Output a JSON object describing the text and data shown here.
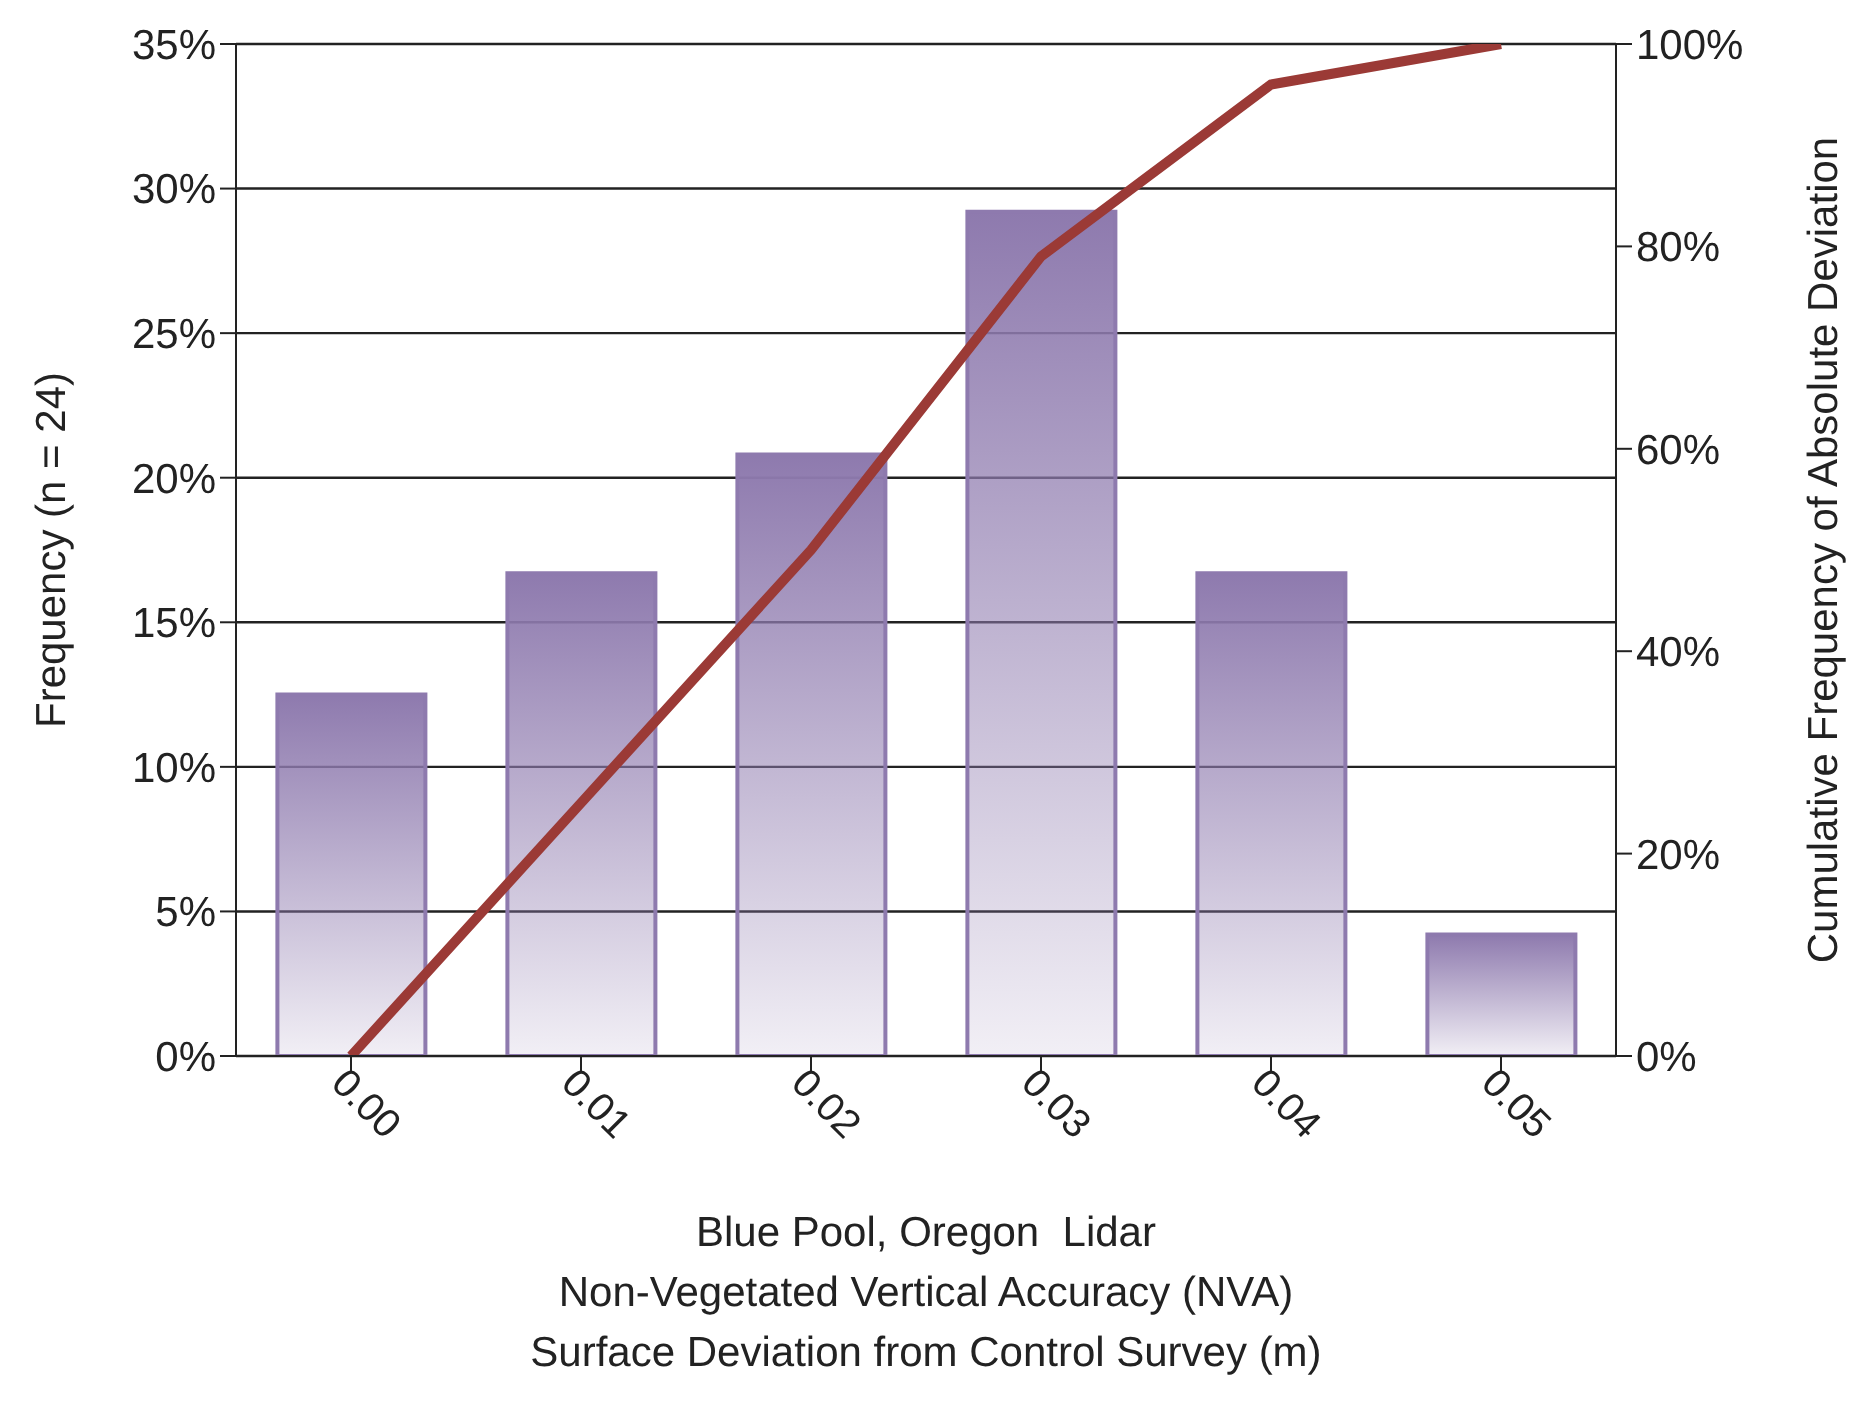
{
  "chart_data": {
    "type": "bar",
    "xlabel": "Blue Pool, Oregon  Lidar\nNon-Vegetated Vertical Accuracy (NVA)\nSurface Deviation from Control Survey (m)",
    "ylabel": "Frequency (n = 24)",
    "y2label": "Cumulative Frequency of Absolute Deviation",
    "categories": [
      "0.00",
      "0.01",
      "0.02",
      "0.03",
      "0.04",
      "0.05"
    ],
    "series": [
      {
        "color": "#8e7aae",
        "values": [
          12.5,
          16.7,
          20.8,
          29.2,
          16.7,
          4.2
        ]
      },
      {
        "type": "line",
        "axis": "y2",
        "color": "#9b3a36",
        "values": [
          0,
          25,
          50,
          79,
          96,
          100
        ]
      }
    ],
    "ylim": [
      0,
      35
    ],
    "yticks": [
      {
        "value": 0,
        "label": "0%"
      },
      {
        "value": 5,
        "label": "5%"
      },
      {
        "value": 10,
        "label": "10%"
      },
      {
        "value": 15,
        "label": "15%"
      },
      {
        "value": 20,
        "label": "20%"
      },
      {
        "value": 25,
        "label": "25%"
      },
      {
        "value": 30,
        "label": "30%"
      },
      {
        "value": 35,
        "label": "35%"
      }
    ],
    "y2lim": [
      0,
      100
    ],
    "y2ticks": [
      {
        "value": 0,
        "label": "0%"
      },
      {
        "value": 20,
        "label": "20%"
      },
      {
        "value": 40,
        "label": "40%"
      },
      {
        "value": 60,
        "label": "60%"
      },
      {
        "value": 80,
        "label": "80%"
      },
      {
        "value": 100,
        "label": "100%"
      }
    ],
    "grid": "y",
    "legend": false,
    "marker": "none",
    "line_style": "solid"
  }
}
